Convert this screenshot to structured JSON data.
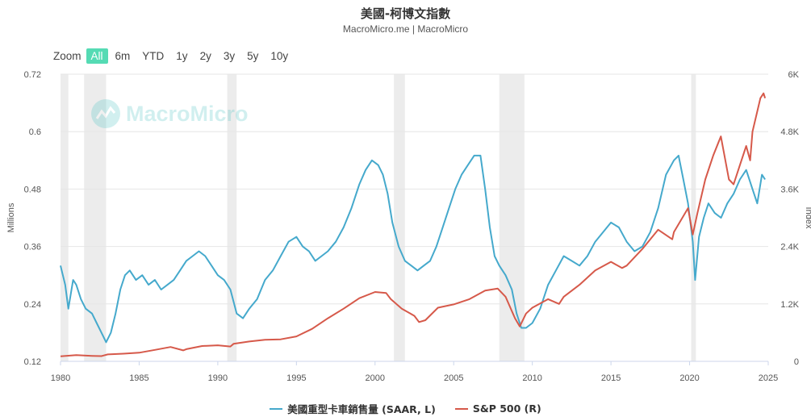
{
  "header": {
    "title": "美國-柯博文指數",
    "subtitle": "MacroMicro.me | MacroMicro"
  },
  "zoom": {
    "label": "Zoom",
    "buttons": [
      "All",
      "6m",
      "YTD",
      "1y",
      "2y",
      "3y",
      "5y",
      "10y"
    ],
    "active": "All"
  },
  "watermark": {
    "text": "MacroMicro"
  },
  "chart_data": {
    "type": "line",
    "xlim": [
      1980,
      2025
    ],
    "x_ticks": [
      "1980",
      "1985",
      "1990",
      "1995",
      "2000",
      "2005",
      "2010",
      "2015",
      "2020",
      "2025"
    ],
    "y_left": {
      "label": "Millions",
      "range": [
        0.12,
        0.72
      ],
      "ticks": [
        "0.12",
        "0.24",
        "0.36",
        "0.48",
        "0.6",
        "0.72"
      ]
    },
    "y_right": {
      "label": "Index",
      "range": [
        0,
        6000
      ],
      "ticks": [
        "0",
        "1.2K",
        "2.4K",
        "3.6K",
        "4.8K",
        "6K"
      ]
    },
    "recessions": [
      [
        1980.0,
        1980.5
      ],
      [
        1981.5,
        1982.9
      ],
      [
        1990.6,
        1991.2
      ],
      [
        2001.2,
        2001.9
      ],
      [
        2007.9,
        2009.5
      ],
      [
        2020.1,
        2020.4
      ]
    ],
    "grid": true,
    "legend_position": "bottom",
    "series": [
      {
        "name": "美國重型卡車銷售量 (SAAR, L)",
        "axis": "left",
        "color": "#45a9cc",
        "points": [
          [
            1980.0,
            0.32
          ],
          [
            1980.3,
            0.28
          ],
          [
            1980.5,
            0.23
          ],
          [
            1980.8,
            0.29
          ],
          [
            1981.0,
            0.28
          ],
          [
            1981.3,
            0.25
          ],
          [
            1981.6,
            0.23
          ],
          [
            1982.0,
            0.22
          ],
          [
            1982.3,
            0.2
          ],
          [
            1982.6,
            0.18
          ],
          [
            1982.9,
            0.16
          ],
          [
            1983.2,
            0.18
          ],
          [
            1983.5,
            0.22
          ],
          [
            1983.8,
            0.27
          ],
          [
            1984.1,
            0.3
          ],
          [
            1984.4,
            0.31
          ],
          [
            1984.8,
            0.29
          ],
          [
            1985.2,
            0.3
          ],
          [
            1985.6,
            0.28
          ],
          [
            1986.0,
            0.29
          ],
          [
            1986.4,
            0.27
          ],
          [
            1986.8,
            0.28
          ],
          [
            1987.2,
            0.29
          ],
          [
            1987.6,
            0.31
          ],
          [
            1988.0,
            0.33
          ],
          [
            1988.4,
            0.34
          ],
          [
            1988.8,
            0.35
          ],
          [
            1989.2,
            0.34
          ],
          [
            1989.6,
            0.32
          ],
          [
            1990.0,
            0.3
          ],
          [
            1990.4,
            0.29
          ],
          [
            1990.8,
            0.27
          ],
          [
            1991.2,
            0.22
          ],
          [
            1991.6,
            0.21
          ],
          [
            1992.0,
            0.23
          ],
          [
            1992.5,
            0.25
          ],
          [
            1993.0,
            0.29
          ],
          [
            1993.5,
            0.31
          ],
          [
            1994.0,
            0.34
          ],
          [
            1994.5,
            0.37
          ],
          [
            1995.0,
            0.38
          ],
          [
            1995.4,
            0.36
          ],
          [
            1995.8,
            0.35
          ],
          [
            1996.2,
            0.33
          ],
          [
            1996.6,
            0.34
          ],
          [
            1997.0,
            0.35
          ],
          [
            1997.5,
            0.37
          ],
          [
            1998.0,
            0.4
          ],
          [
            1998.5,
            0.44
          ],
          [
            1999.0,
            0.49
          ],
          [
            1999.4,
            0.52
          ],
          [
            1999.8,
            0.54
          ],
          [
            2000.2,
            0.53
          ],
          [
            2000.5,
            0.51
          ],
          [
            2000.8,
            0.47
          ],
          [
            2001.1,
            0.41
          ],
          [
            2001.5,
            0.36
          ],
          [
            2001.9,
            0.33
          ],
          [
            2002.3,
            0.32
          ],
          [
            2002.7,
            0.31
          ],
          [
            2003.1,
            0.32
          ],
          [
            2003.5,
            0.33
          ],
          [
            2003.9,
            0.36
          ],
          [
            2004.3,
            0.4
          ],
          [
            2004.7,
            0.44
          ],
          [
            2005.1,
            0.48
          ],
          [
            2005.5,
            0.51
          ],
          [
            2005.9,
            0.53
          ],
          [
            2006.3,
            0.55
          ],
          [
            2006.7,
            0.55
          ],
          [
            2007.0,
            0.48
          ],
          [
            2007.3,
            0.4
          ],
          [
            2007.6,
            0.34
          ],
          [
            2007.9,
            0.32
          ],
          [
            2008.3,
            0.3
          ],
          [
            2008.7,
            0.27
          ],
          [
            2009.0,
            0.22
          ],
          [
            2009.3,
            0.19
          ],
          [
            2009.6,
            0.19
          ],
          [
            2010.0,
            0.2
          ],
          [
            2010.5,
            0.23
          ],
          [
            2011.0,
            0.28
          ],
          [
            2011.5,
            0.31
          ],
          [
            2012.0,
            0.34
          ],
          [
            2012.5,
            0.33
          ],
          [
            2013.0,
            0.32
          ],
          [
            2013.5,
            0.34
          ],
          [
            2014.0,
            0.37
          ],
          [
            2014.5,
            0.39
          ],
          [
            2015.0,
            0.41
          ],
          [
            2015.5,
            0.4
          ],
          [
            2016.0,
            0.37
          ],
          [
            2016.5,
            0.35
          ],
          [
            2017.0,
            0.36
          ],
          [
            2017.5,
            0.39
          ],
          [
            2018.0,
            0.44
          ],
          [
            2018.5,
            0.51
          ],
          [
            2019.0,
            0.54
          ],
          [
            2019.3,
            0.55
          ],
          [
            2019.6,
            0.5
          ],
          [
            2019.9,
            0.45
          ],
          [
            2020.2,
            0.37
          ],
          [
            2020.35,
            0.29
          ],
          [
            2020.6,
            0.38
          ],
          [
            2020.9,
            0.42
          ],
          [
            2021.2,
            0.45
          ],
          [
            2021.6,
            0.43
          ],
          [
            2022.0,
            0.42
          ],
          [
            2022.4,
            0.45
          ],
          [
            2022.8,
            0.47
          ],
          [
            2023.2,
            0.5
          ],
          [
            2023.6,
            0.52
          ],
          [
            2024.0,
            0.48
          ],
          [
            2024.3,
            0.45
          ],
          [
            2024.6,
            0.51
          ],
          [
            2024.8,
            0.5
          ]
        ]
      },
      {
        "name": "S&P 500 (R)",
        "axis": "right",
        "color": "#d6594a",
        "points": [
          [
            1980.0,
            105
          ],
          [
            1981.0,
            130
          ],
          [
            1982.0,
            115
          ],
          [
            1982.6,
            110
          ],
          [
            1983.0,
            145
          ],
          [
            1984.0,
            160
          ],
          [
            1985.0,
            180
          ],
          [
            1986.0,
            240
          ],
          [
            1987.0,
            300
          ],
          [
            1987.8,
            230
          ],
          [
            1988.0,
            255
          ],
          [
            1989.0,
            320
          ],
          [
            1990.0,
            335
          ],
          [
            1990.8,
            310
          ],
          [
            1991.0,
            365
          ],
          [
            1992.0,
            415
          ],
          [
            1993.0,
            450
          ],
          [
            1994.0,
            460
          ],
          [
            1995.0,
            520
          ],
          [
            1996.0,
            680
          ],
          [
            1997.0,
            900
          ],
          [
            1998.0,
            1100
          ],
          [
            1999.0,
            1320
          ],
          [
            2000.0,
            1450
          ],
          [
            2000.7,
            1430
          ],
          [
            2001.0,
            1300
          ],
          [
            2001.7,
            1100
          ],
          [
            2002.5,
            950
          ],
          [
            2002.8,
            820
          ],
          [
            2003.2,
            860
          ],
          [
            2004.0,
            1120
          ],
          [
            2005.0,
            1190
          ],
          [
            2006.0,
            1300
          ],
          [
            2007.0,
            1480
          ],
          [
            2007.8,
            1520
          ],
          [
            2008.3,
            1350
          ],
          [
            2008.9,
            900
          ],
          [
            2009.2,
            730
          ],
          [
            2009.6,
            1000
          ],
          [
            2010.0,
            1120
          ],
          [
            2011.0,
            1300
          ],
          [
            2011.7,
            1200
          ],
          [
            2012.0,
            1350
          ],
          [
            2013.0,
            1600
          ],
          [
            2014.0,
            1900
          ],
          [
            2015.0,
            2080
          ],
          [
            2015.7,
            1950
          ],
          [
            2016.0,
            2000
          ],
          [
            2017.0,
            2350
          ],
          [
            2018.0,
            2750
          ],
          [
            2018.9,
            2550
          ],
          [
            2019.0,
            2700
          ],
          [
            2019.9,
            3200
          ],
          [
            2020.2,
            2650
          ],
          [
            2020.5,
            3100
          ],
          [
            2021.0,
            3800
          ],
          [
            2021.5,
            4300
          ],
          [
            2021.99,
            4700
          ],
          [
            2022.5,
            3800
          ],
          [
            2022.8,
            3700
          ],
          [
            2023.2,
            4100
          ],
          [
            2023.6,
            4500
          ],
          [
            2023.85,
            4200
          ],
          [
            2024.0,
            4800
          ],
          [
            2024.5,
            5500
          ],
          [
            2024.7,
            5600
          ],
          [
            2024.8,
            5500
          ]
        ]
      }
    ]
  }
}
